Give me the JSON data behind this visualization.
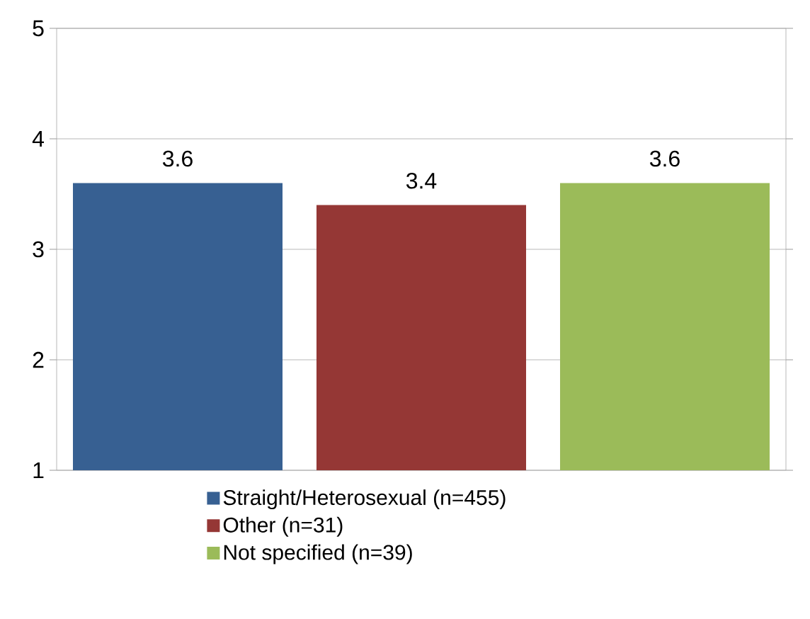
{
  "chart_data": {
    "type": "bar",
    "categories": [
      null
    ],
    "series": [
      {
        "name": "Straight/Heterosexual (n=455)",
        "color": "#376092",
        "values": [
          3.6
        ]
      },
      {
        "name": "Other (n=31)",
        "color": "#953735",
        "values": [
          3.4
        ]
      },
      {
        "name": "Not specified (n=39)",
        "color": "#9bbb59",
        "values": [
          3.6
        ]
      }
    ],
    "ylim": [
      1,
      5
    ],
    "yticks": [
      1,
      2,
      3,
      4,
      5
    ],
    "grid": "y",
    "data_labels": true,
    "legend": "bottom"
  }
}
